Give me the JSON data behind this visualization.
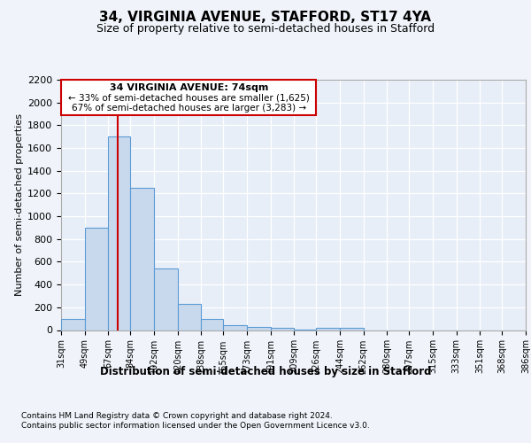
{
  "title1": "34, VIRGINIA AVENUE, STAFFORD, ST17 4YA",
  "title2": "Size of property relative to semi-detached houses in Stafford",
  "xlabel": "Distribution of semi-detached houses by size in Stafford",
  "ylabel": "Number of semi-detached properties",
  "bin_edges": [
    31,
    49,
    67,
    84,
    102,
    120,
    138,
    155,
    173,
    191,
    209,
    226,
    244,
    262,
    280,
    297,
    315,
    333,
    351,
    368,
    386
  ],
  "bar_heights": [
    100,
    900,
    1700,
    1250,
    540,
    230,
    100,
    40,
    25,
    20,
    5,
    20,
    20,
    0,
    0,
    0,
    0,
    0,
    0,
    0
  ],
  "bar_color": "#c8d9ed",
  "bar_edge_color": "#5b9bd5",
  "property_size": 74,
  "property_label": "34 VIRGINIA AVENUE: 74sqm",
  "pct_smaller": 33,
  "pct_larger": 67,
  "n_smaller": 1625,
  "n_larger": 3283,
  "vline_color": "#cc0000",
  "annotation_box_color": "#cc0000",
  "ylim": [
    0,
    2200
  ],
  "yticks": [
    0,
    200,
    400,
    600,
    800,
    1000,
    1200,
    1400,
    1600,
    1800,
    2000,
    2200
  ],
  "footer1": "Contains HM Land Registry data © Crown copyright and database right 2024.",
  "footer2": "Contains public sector information licensed under the Open Government Licence v3.0.",
  "bg_color": "#f0f4fa",
  "plot_bg_color": "#e8eef8"
}
